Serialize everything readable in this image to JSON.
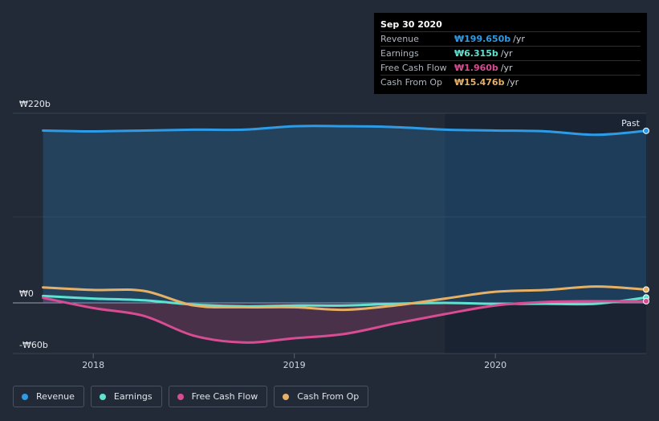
{
  "tooltip": {
    "date": "Sep 30 2020",
    "rows": [
      {
        "name": "Revenue",
        "value": "₩199.650b",
        "unit": "/yr",
        "color": "#2d9be6"
      },
      {
        "name": "Earnings",
        "value": "₩6.315b",
        "unit": "/yr",
        "color": "#5fe3d0"
      },
      {
        "name": "Free Cash Flow",
        "value": "₩1.960b",
        "unit": "/yr",
        "color": "#d84c92"
      },
      {
        "name": "Cash From Op",
        "value": "₩15.476b",
        "unit": "/yr",
        "color": "#e6b167"
      }
    ]
  },
  "legend": [
    {
      "name": "Revenue",
      "color": "#2d9be6"
    },
    {
      "name": "Earnings",
      "color": "#5fe3d0"
    },
    {
      "name": "Free Cash Flow",
      "color": "#d84c92"
    },
    {
      "name": "Cash From Op",
      "color": "#e6b167"
    }
  ],
  "chart_data": {
    "type": "area",
    "title": "",
    "xlabel": "",
    "ylabel": "",
    "ylim": [
      -60,
      220
    ],
    "y_tick_labels": {
      "top": "₩220b",
      "zero": "₩0",
      "bottom": "-₩60b"
    },
    "x_tick_labels": [
      "2018",
      "2019",
      "2020"
    ],
    "x_ticks": [
      2018.0,
      2019.0,
      2020.0
    ],
    "xlim": [
      2017.6,
      2020.75
    ],
    "forecast_start": 2019.75,
    "past_label": "Past",
    "series": [
      {
        "name": "Revenue",
        "color": "#2d9be6",
        "filled": true,
        "points": [
          [
            2017.75,
            200
          ],
          [
            2018.0,
            199
          ],
          [
            2018.25,
            200
          ],
          [
            2018.5,
            201
          ],
          [
            2018.75,
            201
          ],
          [
            2019.0,
            205
          ],
          [
            2019.25,
            205
          ],
          [
            2019.5,
            204
          ],
          [
            2019.75,
            201
          ],
          [
            2020.0,
            200
          ],
          [
            2020.25,
            199
          ],
          [
            2020.5,
            195
          ],
          [
            2020.75,
            199.65
          ]
        ]
      },
      {
        "name": "Earnings",
        "color": "#5fe3d0",
        "filled": false,
        "points": [
          [
            2017.75,
            8
          ],
          [
            2018.0,
            5
          ],
          [
            2018.25,
            3
          ],
          [
            2018.5,
            -2
          ],
          [
            2018.75,
            -4
          ],
          [
            2019.0,
            -3
          ],
          [
            2019.25,
            -3
          ],
          [
            2019.5,
            -1
          ],
          [
            2019.75,
            0
          ],
          [
            2020.0,
            -1
          ],
          [
            2020.25,
            -1
          ],
          [
            2020.5,
            -1
          ],
          [
            2020.75,
            6.315
          ]
        ]
      },
      {
        "name": "Free Cash Flow",
        "color": "#d84c92",
        "filled": true,
        "points": [
          [
            2017.75,
            6
          ],
          [
            2018.0,
            -6
          ],
          [
            2018.25,
            -15
          ],
          [
            2018.5,
            -38
          ],
          [
            2018.75,
            -46
          ],
          [
            2019.0,
            -41
          ],
          [
            2019.25,
            -36
          ],
          [
            2019.5,
            -24
          ],
          [
            2019.75,
            -13
          ],
          [
            2020.0,
            -3
          ],
          [
            2020.25,
            1
          ],
          [
            2020.5,
            2
          ],
          [
            2020.75,
            1.96
          ]
        ]
      },
      {
        "name": "Cash From Op",
        "color": "#e6b167",
        "filled": false,
        "points": [
          [
            2017.75,
            18
          ],
          [
            2018.0,
            15
          ],
          [
            2018.25,
            14
          ],
          [
            2018.5,
            -3
          ],
          [
            2018.75,
            -5
          ],
          [
            2019.0,
            -5
          ],
          [
            2019.25,
            -8
          ],
          [
            2019.5,
            -3
          ],
          [
            2019.75,
            5
          ],
          [
            2020.0,
            13
          ],
          [
            2020.25,
            15
          ],
          [
            2020.5,
            19
          ],
          [
            2020.75,
            15.476
          ]
        ]
      }
    ]
  }
}
